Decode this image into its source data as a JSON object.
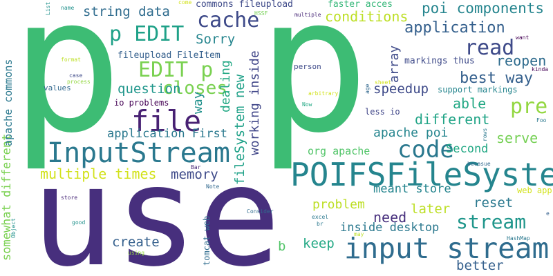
{
  "words": [
    {
      "text": "p",
      "color": "#3dbc74"
    },
    {
      "text": "p",
      "color": "#3dbc74"
    },
    {
      "text": "use",
      "color": "#472f7d"
    },
    {
      "text": "POIFSFileSystem",
      "color": "#25858e"
    },
    {
      "text": "input stream",
      "color": "#2f6c8e"
    },
    {
      "text": "InputStream",
      "color": "#2a788e"
    },
    {
      "text": "file",
      "color": "#482173"
    },
    {
      "text": "cache",
      "color": "#3e4a89"
    },
    {
      "text": "p EDIT",
      "color": "#1fa188"
    },
    {
      "text": "EDIT p",
      "color": "#7ad151"
    },
    {
      "text": "closes",
      "color": "#7ad151"
    },
    {
      "text": "code",
      "color": "#2a788e"
    },
    {
      "text": "stream",
      "color": "#1f968b"
    },
    {
      "text": "pre",
      "color": "#93d741"
    },
    {
      "text": "read",
      "color": "#3e4a89"
    },
    {
      "text": "reopen",
      "color": "#2f6c8e"
    },
    {
      "text": "best way",
      "color": "#35608d"
    },
    {
      "text": "application",
      "color": "#35608d"
    },
    {
      "text": "poi components",
      "color": "#25858e"
    },
    {
      "text": "conditions",
      "color": "#bddf26"
    },
    {
      "text": "string data",
      "color": "#2f6c8e"
    },
    {
      "text": "Sorry",
      "color": "#25858e"
    },
    {
      "text": "question",
      "color": "#1f968b"
    },
    {
      "text": "multiple times",
      "color": "#d2e21b"
    },
    {
      "text": "memory",
      "color": "#3e4a89"
    },
    {
      "text": "application First",
      "color": "#2a788e"
    },
    {
      "text": "fileSystem new",
      "color": "#1fa188"
    },
    {
      "text": "working inside",
      "color": "#404688"
    },
    {
      "text": "dealing",
      "color": "#22a884"
    },
    {
      "text": "way",
      "color": "#21918c"
    },
    {
      "text": "array",
      "color": "#3e4a89"
    },
    {
      "text": "speedup",
      "color": "#3e4a89"
    },
    {
      "text": "able",
      "color": "#22a884"
    },
    {
      "text": "different",
      "color": "#20a486"
    },
    {
      "text": "apache poi",
      "color": "#25858e"
    },
    {
      "text": "serve",
      "color": "#75d054"
    },
    {
      "text": "Second",
      "color": "#22a884"
    },
    {
      "text": "org apache",
      "color": "#52c569"
    },
    {
      "text": "meant store",
      "color": "#25858e"
    },
    {
      "text": "need",
      "color": "#472f7d"
    },
    {
      "text": "problem",
      "color": "#bddf26"
    },
    {
      "text": "later",
      "color": "#bddf26"
    },
    {
      "text": "reset",
      "color": "#2a788e"
    },
    {
      "text": "inside desktop",
      "color": "#2a788e"
    },
    {
      "text": "create",
      "color": "#35608d"
    },
    {
      "text": "keep",
      "color": "#22a884"
    },
    {
      "text": "better",
      "color": "#35608d"
    },
    {
      "text": "b",
      "color": "#52c569"
    },
    {
      "text": "somewhat different",
      "color": "#7ad151"
    },
    {
      "text": "apache commons",
      "color": "#2a788e"
    },
    {
      "text": "commons fileupload",
      "color": "#3e4a89"
    },
    {
      "text": "faster acces",
      "color": "#35b779"
    },
    {
      "text": "fileupload FileItem",
      "color": "#35608d"
    },
    {
      "text": "io problems",
      "color": "#440154"
    },
    {
      "text": "markings thus",
      "color": "#3e4a89"
    },
    {
      "text": "support markings",
      "color": "#25858e"
    },
    {
      "text": "less io",
      "color": "#404688"
    },
    {
      "text": "tomcat web",
      "color": "#2f6c8e"
    },
    {
      "text": "web app",
      "color": "#d2e21b"
    },
    {
      "text": "values",
      "color": "#31688e"
    },
    {
      "text": "person",
      "color": "#3e4a89"
    },
    {
      "text": "multiple",
      "color": "#482878"
    },
    {
      "text": "HSSF",
      "color": "#75d054"
    },
    {
      "text": "Consider",
      "color": "#2f6c8e"
    },
    {
      "text": "arbitrary",
      "color": "#d2e21b"
    },
    {
      "text": "sheet",
      "color": "#d2e21b"
    },
    {
      "text": "excel",
      "color": "#2a788e"
    },
    {
      "text": "br",
      "color": "#2a788e"
    },
    {
      "text": "HashMap",
      "color": "#2a788e"
    },
    {
      "text": "Note",
      "color": "#31688e"
    },
    {
      "text": "store",
      "color": "#482878"
    },
    {
      "text": "good",
      "color": "#21918c"
    },
    {
      "text": "using",
      "color": "#93d741"
    },
    {
      "text": "Object",
      "color": "#21918c"
    },
    {
      "text": "Bar",
      "color": "#482878"
    },
    {
      "text": "List",
      "color": "#21918c"
    },
    {
      "text": "name",
      "color": "#21918c"
    },
    {
      "text": "come",
      "color": "#d2e21b"
    },
    {
      "text": "format",
      "color": "#bddf26"
    },
    {
      "text": "case",
      "color": "#3e4a89"
    },
    {
      "text": "process",
      "color": "#93d741"
    },
    {
      "text": "want",
      "color": "#440154"
    },
    {
      "text": "kinda",
      "color": "#440154"
    },
    {
      "text": "age",
      "color": "#31688e"
    },
    {
      "text": "Now",
      "color": "#22a884"
    },
    {
      "text": "rows",
      "color": "#2a788e"
    },
    {
      "text": "Foo",
      "color": "#2a788e"
    },
    {
      "text": "becasue",
      "color": "#31688e"
    },
    {
      "text": "may",
      "color": "#bddf26"
    },
    {
      "text": "e",
      "color": "#35608d"
    }
  ]
}
